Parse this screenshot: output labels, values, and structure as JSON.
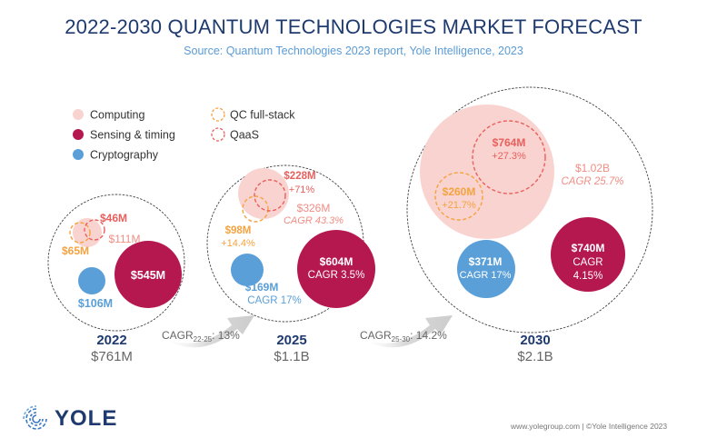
{
  "header": {
    "title": "2022-2030 QUANTUM TECHNOLOGIES MARKET FORECAST",
    "subtitle": "Source: Quantum Technologies 2023 report, Yole Intelligence, 2023"
  },
  "colors": {
    "computing": "#f9d3cf",
    "sensing": "#b5184f",
    "cryptography": "#5a9fd8",
    "qc_fullstack": "#f4a340",
    "qaas": "#e8605e",
    "computing_text": "#f08e85",
    "year": "#1e3a6e",
    "total": "#666666",
    "arrow": "#d9d9d9"
  },
  "legend": [
    {
      "label": "Computing",
      "style": "filled",
      "key": "computing"
    },
    {
      "label": "Sensing & timing",
      "style": "filled",
      "key": "sensing"
    },
    {
      "label": "Cryptography",
      "style": "filled",
      "key": "cryptography"
    },
    {
      "label": "QC full-stack",
      "style": "dashed",
      "key": "qc_fullstack"
    },
    {
      "label": "QaaS",
      "style": "dashed",
      "key": "qaas"
    }
  ],
  "chart_data": {
    "type": "bubble",
    "title": "2022-2030 QUANTUM TECHNOLOGIES MARKET FORECAST",
    "subtitle": "Source: Quantum Technologies 2023 report, Yole Intelligence, 2023",
    "unit": "USD millions",
    "years": [
      {
        "year": "2022",
        "total_label": "$761M",
        "total": 761,
        "segments": {
          "computing": {
            "value": 111,
            "label": "$111M",
            "cagr": ""
          },
          "sensing": {
            "value": 545,
            "label": "$545M",
            "cagr": ""
          },
          "cryptography": {
            "value": 106,
            "label": "$106M",
            "cagr": ""
          },
          "qc_fullstack": {
            "value": 65,
            "label": "$65M",
            "growth": ""
          },
          "qaas": {
            "value": 46,
            "label": "$46M",
            "growth": ""
          }
        }
      },
      {
        "year": "2025",
        "total_label": "$1.1B",
        "total": 1100,
        "segments": {
          "computing": {
            "value": 326,
            "label": "$326M",
            "cagr": "CAGR 43.3%"
          },
          "sensing": {
            "value": 604,
            "label": "$604M",
            "cagr": "CAGR 3.5%"
          },
          "cryptography": {
            "value": 169,
            "label": "$169M",
            "cagr": "CAGR 17%"
          },
          "qc_fullstack": {
            "value": 98,
            "label": "$98M",
            "growth": "+14.4%"
          },
          "qaas": {
            "value": 228,
            "label": "$228M",
            "growth": "+71%"
          }
        }
      },
      {
        "year": "2030",
        "total_label": "$2.1B",
        "total": 2100,
        "segments": {
          "computing": {
            "value": 1020,
            "label": "$1.02B",
            "cagr": "CAGR  25.7%"
          },
          "sensing": {
            "value": 740,
            "label": "$740M",
            "cagr": "CAGR",
            "cagr2": "4.15%"
          },
          "cryptography": {
            "value": 371,
            "label": "$371M",
            "cagr": "CAGR 17%"
          },
          "qc_fullstack": {
            "value": 260,
            "label": "$260M",
            "growth": "+21.7%"
          },
          "qaas": {
            "value": 764,
            "label": "$764M",
            "growth": "+27.3%"
          }
        }
      }
    ],
    "transitions": [
      {
        "prefix": "CAGR",
        "sub": "22-25",
        "suffix": ": 13%",
        "value": 13
      },
      {
        "prefix": "CAGR",
        "sub": "25-30",
        "suffix": ": 14.2%",
        "value": 14.2
      }
    ]
  },
  "footer": {
    "logo": "YOLE",
    "credit": "www.yolegroup.com | ©Yole Intelligence 2023"
  }
}
